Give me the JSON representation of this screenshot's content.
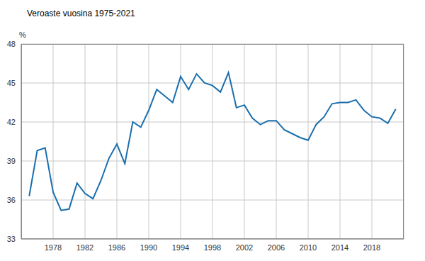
{
  "chart_data": {
    "type": "line",
    "title": "Veroaste vuosina 1975-2021",
    "y_label": "%",
    "x": [
      1975,
      1976,
      1977,
      1978,
      1979,
      1980,
      1981,
      1982,
      1983,
      1984,
      1985,
      1986,
      1987,
      1988,
      1989,
      1990,
      1991,
      1992,
      1993,
      1994,
      1995,
      1996,
      1997,
      1998,
      1999,
      2000,
      2001,
      2002,
      2003,
      2004,
      2005,
      2006,
      2007,
      2008,
      2009,
      2010,
      2011,
      2012,
      2013,
      2014,
      2015,
      2016,
      2017,
      2018,
      2019,
      2020,
      2021
    ],
    "values": [
      36.3,
      39.8,
      40.0,
      36.6,
      35.2,
      35.3,
      37.3,
      36.5,
      36.1,
      37.5,
      39.2,
      40.3,
      38.8,
      42.0,
      41.6,
      42.9,
      44.5,
      44.0,
      43.5,
      45.5,
      44.5,
      45.7,
      45.0,
      44.8,
      44.3,
      45.8,
      43.1,
      43.3,
      42.3,
      41.8,
      42.1,
      42.1,
      41.4,
      41.1,
      40.8,
      40.6,
      41.8,
      42.4,
      43.4,
      43.5,
      43.5,
      43.7,
      42.9,
      42.4,
      42.3,
      41.9,
      43.0
    ],
    "color": "#1a6fad",
    "xlim": [
      1974,
      2022
    ],
    "xticks": [
      1978,
      1982,
      1986,
      1990,
      1994,
      1998,
      2002,
      2006,
      2010,
      2014,
      2018
    ],
    "ylim": [
      33,
      48
    ],
    "yticks": [
      33,
      36,
      39,
      42,
      45,
      48
    ],
    "grid": true
  }
}
